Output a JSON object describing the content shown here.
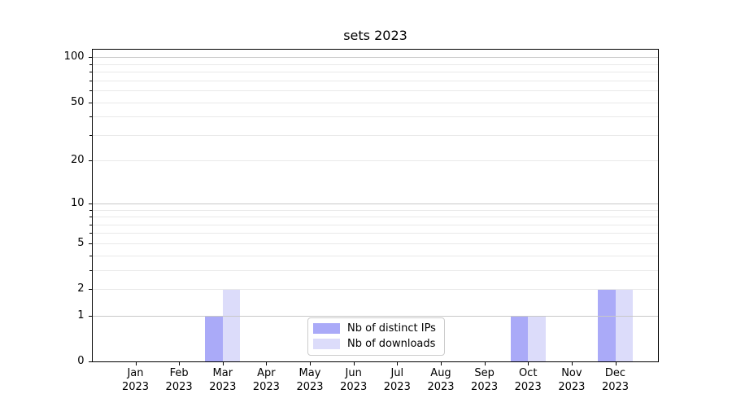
{
  "chart_data": {
    "type": "bar",
    "title": "sets 2023",
    "xlabel": "",
    "ylabel": "",
    "x": {
      "months": [
        "Jan",
        "Feb",
        "Mar",
        "Apr",
        "May",
        "Jun",
        "Jul",
        "Aug",
        "Sep",
        "Oct",
        "Nov",
        "Dec"
      ],
      "year": "2023"
    },
    "series": [
      {
        "name": "Nb of distinct IPs",
        "color": "#aaaaf8",
        "values": [
          0,
          0,
          1,
          0,
          0,
          0,
          0,
          0,
          0,
          1,
          0,
          2
        ]
      },
      {
        "name": "Nb of downloads",
        "color": "#dcdcfa",
        "values": [
          0,
          0,
          2,
          0,
          0,
          0,
          0,
          0,
          0,
          1,
          0,
          2
        ]
      }
    ],
    "yscale": "log1p",
    "ylim": [
      0,
      114
    ],
    "y_labeled_ticks": [
      0,
      1,
      2,
      5,
      10,
      20,
      50,
      100
    ],
    "y_major_gridlines": [
      1,
      10,
      100
    ],
    "y_minor_ticks": [
      2,
      3,
      4,
      5,
      6,
      7,
      8,
      9,
      20,
      30,
      40,
      50,
      60,
      70,
      80,
      90
    ],
    "grid": true,
    "legend_position": "lower center, inside plot"
  },
  "colors": {
    "background": "#ffffff",
    "spine": "#000000",
    "grid_major": "#c8c8c8",
    "grid_minor": "#e9e9e9",
    "legend_border": "#cccccc",
    "text": "#000000",
    "bar_distinct_ips": "#aaaaf8",
    "bar_downloads": "#dcdcfa"
  }
}
